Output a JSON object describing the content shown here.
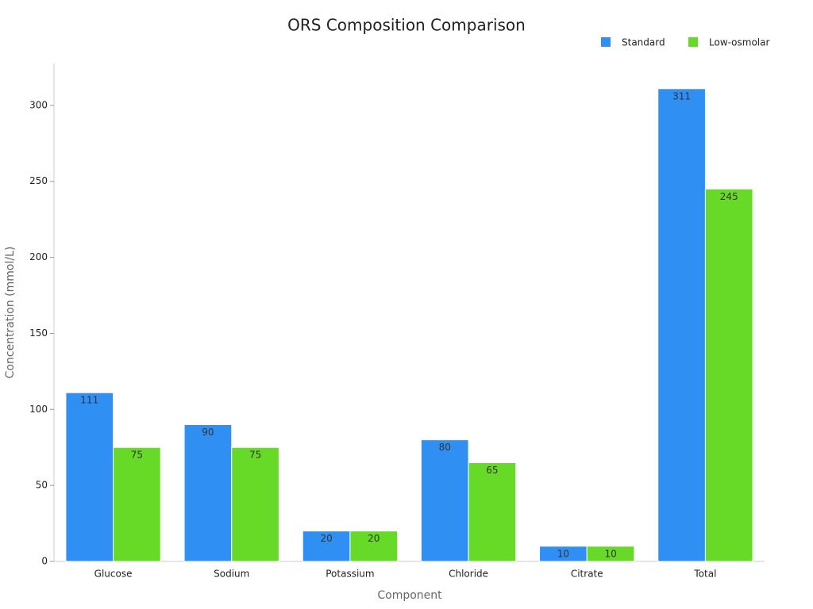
{
  "chart_data": {
    "type": "bar",
    "title": "ORS Composition Comparison",
    "x_label": "Component",
    "y_label": "Concentration (mmol/L)",
    "categories": [
      "Glucose",
      "Sodium",
      "Potassium",
      "Chloride",
      "Citrate",
      "Total"
    ],
    "series": [
      {
        "name": "Standard",
        "color": "#2f8ff2",
        "values": [
          111,
          90,
          20,
          80,
          10,
          311
        ]
      },
      {
        "name": "Low-osmolar",
        "color": "#66da26",
        "values": [
          75,
          75,
          20,
          65,
          10,
          245
        ]
      }
    ],
    "ylim": [
      0,
      326.55
    ],
    "yticks": [
      0,
      50,
      100,
      150,
      200,
      250,
      300
    ],
    "grid": false,
    "legend": "top-right"
  }
}
